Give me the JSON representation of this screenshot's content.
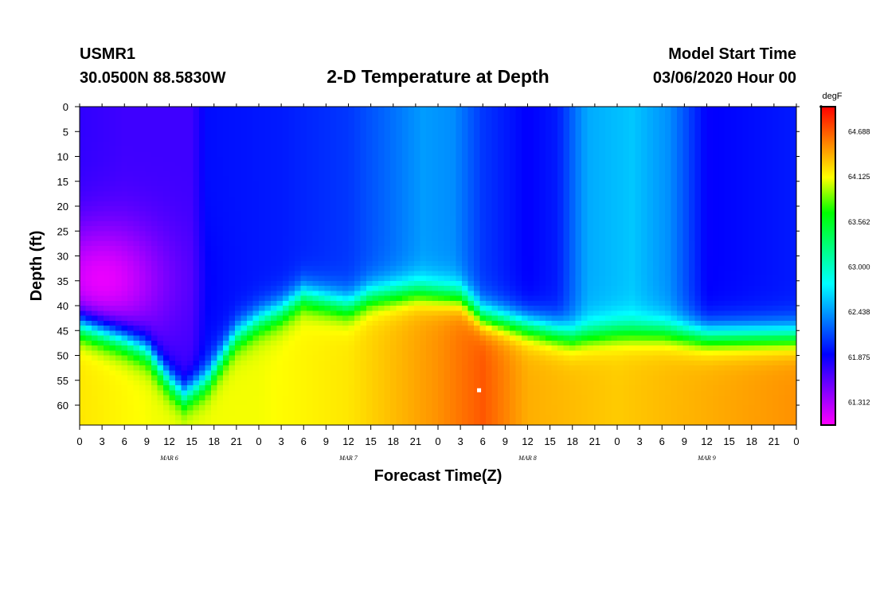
{
  "header": {
    "station_id": "USMR1",
    "coords": "30.0500N 88.5830W",
    "title": "2-D Temperature at Depth",
    "model_start_label": "Model Start Time",
    "model_start_value": "03/06/2020 Hour 00"
  },
  "chart_data": {
    "type": "heatmap",
    "title": "2-D Temperature at Depth",
    "xlabel": "Forecast Time(Z)",
    "ylabel": "Depth (ft)",
    "x_range_hours": [
      0,
      96
    ],
    "x_ticks": [
      "0",
      "3",
      "6",
      "9",
      "12",
      "15",
      "18",
      "21",
      "0",
      "3",
      "6",
      "9",
      "12",
      "15",
      "18",
      "21",
      "0",
      "3",
      "6",
      "9",
      "12",
      "15",
      "18",
      "21",
      "0",
      "3",
      "6",
      "9",
      "12",
      "15",
      "18",
      "21",
      "0"
    ],
    "date_labels": [
      {
        "label": "MAR 6",
        "hour": 12
      },
      {
        "label": "MAR 7",
        "hour": 36
      },
      {
        "label": "MAR 8",
        "hour": 60
      },
      {
        "label": "MAR 9",
        "hour": 84
      }
    ],
    "y_range": [
      0,
      64
    ],
    "y_ticks": [
      0,
      5,
      10,
      15,
      20,
      25,
      30,
      35,
      40,
      45,
      50,
      55,
      60
    ],
    "y_inverted": true,
    "colorbar": {
      "unit": "degF",
      "range": [
        61.03,
        65.0
      ],
      "ticks": [
        "64.688",
        "64.125",
        "63.562",
        "63.000",
        "62.438",
        "61.875",
        "61.312"
      ],
      "tick_values": [
        64.688,
        64.125,
        63.562,
        63.0,
        62.438,
        61.875,
        61.312
      ],
      "colors": [
        "#ff00ff",
        "#8000ff",
        "#0000ff",
        "#0080ff",
        "#00ffff",
        "#00ff80",
        "#00ff00",
        "#ffff00",
        "#ff8000",
        "#ff0000"
      ]
    },
    "thermocline_depth_ft": [
      {
        "hour": 0,
        "depth": 44
      },
      {
        "hour": 6,
        "depth": 47
      },
      {
        "hour": 9,
        "depth": 49
      },
      {
        "hour": 12,
        "depth": 55
      },
      {
        "hour": 14,
        "depth": 58
      },
      {
        "hour": 17,
        "depth": 55
      },
      {
        "hour": 21,
        "depth": 46
      },
      {
        "hour": 24,
        "depth": 43
      },
      {
        "hour": 27,
        "depth": 41
      },
      {
        "hour": 30,
        "depth": 38
      },
      {
        "hour": 33,
        "depth": 39
      },
      {
        "hour": 36,
        "depth": 40
      },
      {
        "hour": 39,
        "depth": 38
      },
      {
        "hour": 45,
        "depth": 37
      },
      {
        "hour": 51,
        "depth": 38
      },
      {
        "hour": 54,
        "depth": 42
      },
      {
        "hour": 60,
        "depth": 44
      },
      {
        "hour": 66,
        "depth": 46
      },
      {
        "hour": 72,
        "depth": 45
      },
      {
        "hour": 78,
        "depth": 45
      },
      {
        "hour": 84,
        "depth": 46
      },
      {
        "hour": 96,
        "depth": 46
      }
    ],
    "upper_layer_temp_degF": [
      {
        "hour": 0,
        "temp": 61.75
      },
      {
        "hour": 6,
        "temp": 61.7
      },
      {
        "hour": 15,
        "temp": 61.7
      },
      {
        "hour": 17,
        "temp": 61.95
      },
      {
        "hour": 27,
        "temp": 62.0
      },
      {
        "hour": 36,
        "temp": 62.1
      },
      {
        "hour": 42,
        "temp": 62.3
      },
      {
        "hour": 46,
        "temp": 62.45
      },
      {
        "hour": 50,
        "temp": 62.4
      },
      {
        "hour": 54,
        "temp": 62.1
      },
      {
        "hour": 60,
        "temp": 61.9
      },
      {
        "hour": 64,
        "temp": 62.0
      },
      {
        "hour": 68,
        "temp": 62.5
      },
      {
        "hour": 74,
        "temp": 62.6
      },
      {
        "hour": 79,
        "temp": 62.4
      },
      {
        "hour": 84,
        "temp": 61.9
      },
      {
        "hour": 96,
        "temp": 62.0
      }
    ],
    "bottom_layer_temp_degF": [
      {
        "hour": 0,
        "temp": 64.2
      },
      {
        "hour": 10,
        "temp": 64.1
      },
      {
        "hour": 24,
        "temp": 64.1
      },
      {
        "hour": 36,
        "temp": 64.2
      },
      {
        "hour": 48,
        "temp": 64.5
      },
      {
        "hour": 54,
        "temp": 64.7
      },
      {
        "hour": 60,
        "temp": 64.4
      },
      {
        "hour": 72,
        "temp": 64.3
      },
      {
        "hour": 84,
        "temp": 64.4
      },
      {
        "hour": 96,
        "temp": 64.5
      }
    ],
    "cold_pocket": {
      "hour": 3,
      "depth": 35,
      "temp": 61.1
    },
    "marker": {
      "hour": 53.5,
      "depth": 57
    }
  }
}
